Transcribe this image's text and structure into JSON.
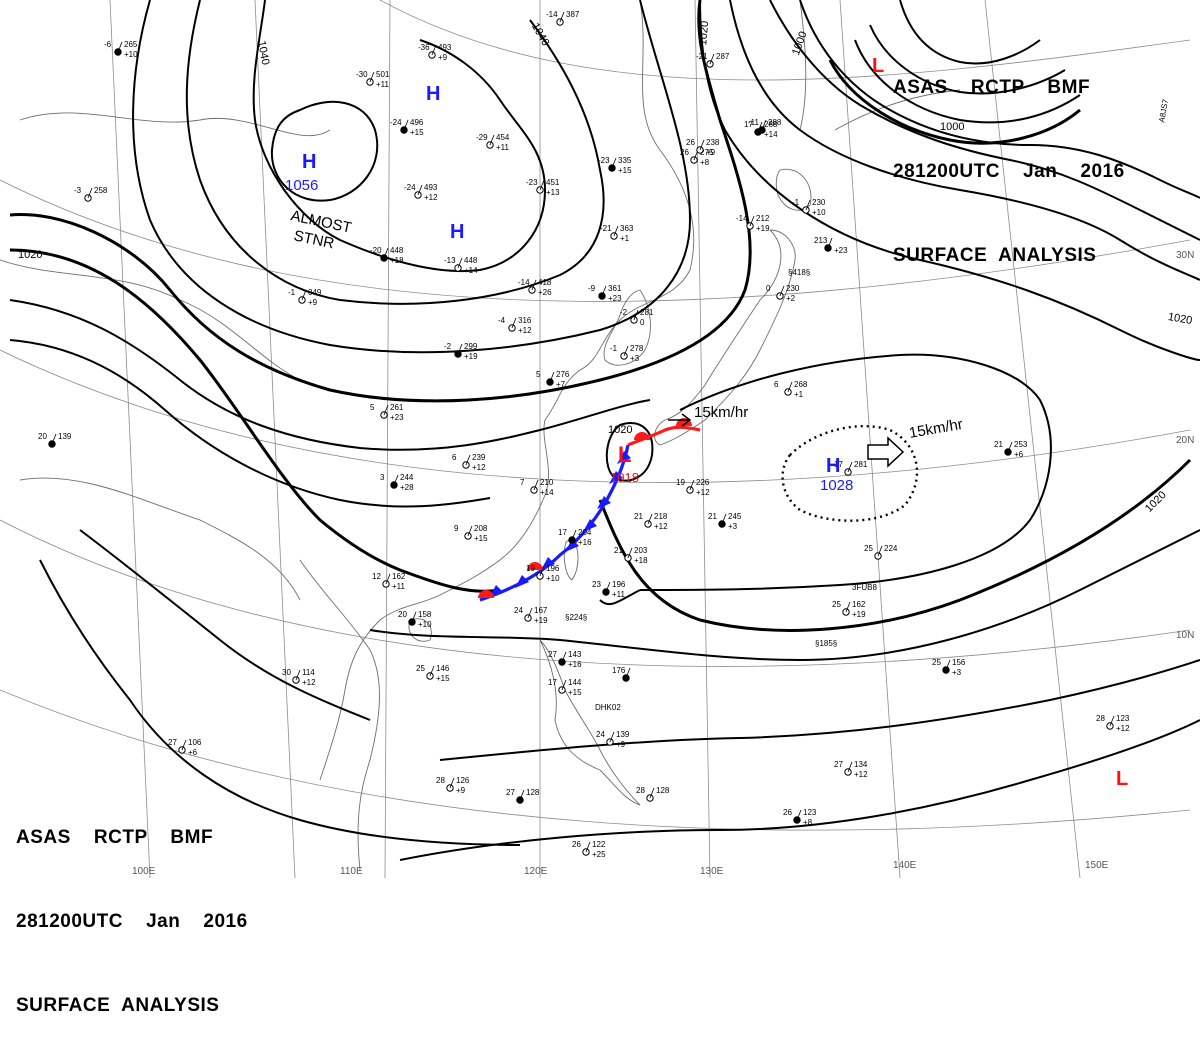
{
  "header": {
    "line1": "ASAS    RCTP    BMF",
    "line2": "281200UTC    Jan    2016",
    "line3": "SURFACE  ANALYSIS"
  },
  "isobar_labels": [
    "1040",
    "1040",
    "1020",
    "1020",
    "1020",
    "1020",
    "1000",
    "1000",
    "1020"
  ],
  "highs": [
    {
      "symbol": "H",
      "value": "1056"
    },
    {
      "symbol": "H",
      "value": ""
    },
    {
      "symbol": "H",
      "value": ""
    },
    {
      "symbol": "H",
      "value": "1028"
    }
  ],
  "lows": [
    {
      "symbol": "L",
      "value": "1018"
    },
    {
      "symbol": "L",
      "value": ""
    },
    {
      "symbol": "L",
      "value": ""
    }
  ],
  "annotations": {
    "stationary_note_1": "ALMOST",
    "stationary_note_2": "STNR",
    "low_motion": "15km/hr",
    "high_motion": "15km/hr"
  },
  "lat_labels": [
    "30N",
    "20N",
    "10N"
  ],
  "lon_labels": [
    "100E",
    "110E",
    "120E",
    "130E",
    "140E",
    "150E"
  ],
  "station_plots": [
    {
      "t": "-6",
      "p": "265",
      "d": "+10"
    },
    {
      "t": "-36",
      "p": "493",
      "d": "+9"
    },
    {
      "t": "-30",
      "p": "501",
      "d": "+11"
    },
    {
      "t": "-24",
      "p": "496",
      "d": "+15"
    },
    {
      "t": "-29",
      "p": "454",
      "d": "+11"
    },
    {
      "t": "-24",
      "p": "493",
      "d": "+12"
    },
    {
      "t": "-23",
      "p": "335",
      "d": "+15"
    },
    {
      "t": "-23",
      "p": "451",
      "d": "+13"
    },
    {
      "t": "-21",
      "p": "363",
      "d": "+1"
    },
    {
      "t": "-20",
      "p": "448",
      "d": "+18"
    },
    {
      "t": "-13",
      "p": "448",
      "d": "+14"
    },
    {
      "t": "-14",
      "p": "418",
      "d": "+26"
    },
    {
      "t": "-9",
      "p": "361",
      "d": "+23"
    },
    {
      "t": "-1",
      "p": "349",
      "d": "+9"
    },
    {
      "t": "-4",
      "p": "316",
      "d": "+12"
    },
    {
      "t": "-2",
      "p": "299",
      "d": "+19"
    },
    {
      "t": "-2",
      "p": "281",
      "d": "0"
    },
    {
      "t": "-1",
      "p": "278",
      "d": "+3"
    },
    {
      "t": "5",
      "p": "276",
      "d": "+7"
    },
    {
      "t": "5",
      "p": "261",
      "d": "+23"
    },
    {
      "t": "6",
      "p": "239",
      "d": "+12"
    },
    {
      "t": "3",
      "p": "244",
      "d": "+28"
    },
    {
      "t": "7",
      "p": "210",
      "d": "+14"
    },
    {
      "t": "9",
      "p": "208",
      "d": "+15"
    },
    {
      "t": "17",
      "p": "204",
      "d": "+16"
    },
    {
      "t": "19",
      "p": "226",
      "d": "+12"
    },
    {
      "t": "21",
      "p": "218",
      "d": "+12"
    },
    {
      "t": "21",
      "p": "245",
      "d": "+3"
    },
    {
      "t": "21",
      "p": "203",
      "d": "+18"
    },
    {
      "t": "19",
      "p": "196",
      "d": "+10"
    },
    {
      "t": "23",
      "p": "196",
      "d": "+11"
    },
    {
      "t": "24",
      "p": "167",
      "d": "+19"
    },
    {
      "t": "12",
      "p": "162",
      "d": "+11"
    },
    {
      "t": "20",
      "p": "158",
      "d": "+10"
    },
    {
      "t": "25",
      "p": "146",
      "d": "+15"
    },
    {
      "t": "30",
      "p": "114",
      "d": "+12"
    },
    {
      "t": "20",
      "p": "139",
      "d": ""
    },
    {
      "t": "26",
      "p": "275",
      "d": "+8"
    },
    {
      "t": "26",
      "p": "238",
      "d": "+9"
    },
    {
      "t": "17",
      "p": "288",
      "d": "+14"
    },
    {
      "t": "-1",
      "p": "230",
      "d": "+10"
    },
    {
      "t": "-14",
      "p": "212",
      "d": "+19"
    },
    {
      "t": "213",
      "p": "",
      "d": "+23"
    },
    {
      "t": "0",
      "p": "230",
      "d": "+2"
    },
    {
      "t": "17",
      "p": "281",
      "d": ""
    },
    {
      "t": "21",
      "p": "253",
      "d": "+6"
    },
    {
      "t": "25",
      "p": "224",
      "d": ""
    },
    {
      "t": "25",
      "p": "162",
      "d": "+19"
    },
    {
      "t": "25",
      "p": "156",
      "d": "+3"
    },
    {
      "t": "28",
      "p": "123",
      "d": "+12"
    },
    {
      "t": "27",
      "p": "134",
      "d": "+12"
    },
    {
      "t": "26",
      "p": "123",
      "d": "+8"
    },
    {
      "t": "27",
      "p": "106",
      "d": "+6"
    },
    {
      "t": "28",
      "p": "126",
      "d": "+9"
    },
    {
      "t": "27",
      "p": "128",
      "d": ""
    },
    {
      "t": "28",
      "p": "128",
      "d": ""
    },
    {
      "t": "26",
      "p": "122",
      "d": "+25"
    },
    {
      "t": "27",
      "p": "143",
      "d": "+16"
    },
    {
      "t": "17",
      "p": "144",
      "d": "+15"
    },
    {
      "t": "24",
      "p": "139",
      "d": "+9"
    },
    {
      "t": "176",
      "p": "",
      "d": ""
    },
    {
      "t": "-14",
      "p": "387",
      "d": ""
    },
    {
      "t": "-21",
      "p": "287",
      "d": ""
    },
    {
      "t": "-11",
      "p": "288",
      "d": ""
    },
    {
      "t": "6",
      "p": "268",
      "d": "+1"
    },
    {
      "t": "-3",
      "p": "258",
      "d": ""
    }
  ],
  "ship_ids": [
    "3FUB8",
    "DHK02",
    "A8JS7",
    "§418§",
    "§224§",
    "§185§"
  ],
  "colors": {
    "isobar": "#000000",
    "high": "#1a1aff",
    "low": "#ff1010",
    "warm_front": "#ff1a1a",
    "cold_front": "#1a1aff",
    "grid": "#8c8c8c",
    "coast": "#6e6e6e"
  }
}
